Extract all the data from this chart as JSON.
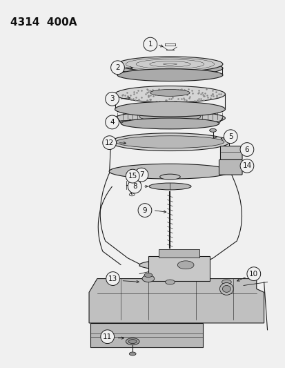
{
  "title": "4314  400A",
  "title_fontsize": 11,
  "title_fontweight": "bold",
  "bg_color": "#f0f0f0",
  "line_color": "#1a1a1a",
  "label_color": "#111111",
  "fig_width": 4.14,
  "fig_height": 5.33,
  "dpi": 100,
  "gray_fill": "#d8d8d8",
  "light_gray": "#e8e8e8",
  "mid_gray": "#c0c0c0"
}
